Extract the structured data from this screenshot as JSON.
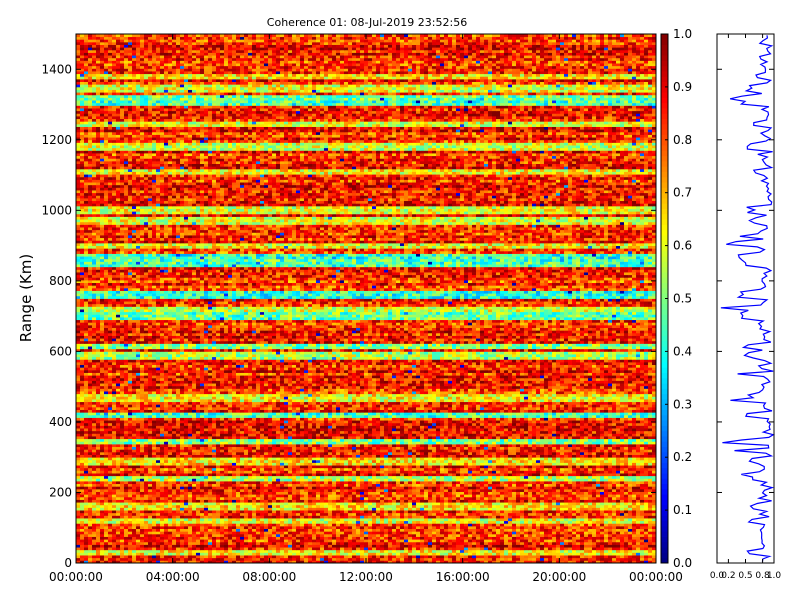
{
  "chart_data": [
    {
      "type": "heatmap",
      "title": "Coherence 01: 08-Jul-2019 23:52:56",
      "xlabel": "",
      "ylabel": "Range (Km)",
      "x_tick_labels": [
        "00:00:00",
        "04:00:00",
        "08:00:00",
        "12:00:00",
        "16:00:00",
        "20:00:00",
        "00:00:00"
      ],
      "x_range_hours": [
        0,
        24
      ],
      "y_ticks": [
        0,
        200,
        400,
        600,
        800,
        1000,
        1200,
        1400
      ],
      "ylim": [
        0,
        1500
      ],
      "range_gate_km": 7.5,
      "color_scale": {
        "colormap": "jet",
        "range": [
          0,
          1
        ],
        "ticks": [
          0.0,
          0.1,
          0.2,
          0.3,
          0.4,
          0.5,
          0.6,
          0.7,
          0.8,
          0.9,
          1.0
        ],
        "tick_labels": [
          "0.0",
          "0.1",
          "0.2",
          "0.3",
          "0.4",
          "0.5",
          "0.6",
          "0.7",
          "0.8",
          "0.9",
          "1.0"
        ]
      },
      "low_coherence_bands_km": [
        {
          "range_km": 30,
          "coherence": 0.62
        },
        {
          "range_km": 120,
          "coherence": 0.6
        },
        {
          "range_km": 160,
          "coherence": 0.65
        },
        {
          "range_km": 240,
          "coherence": 0.55
        },
        {
          "range_km": 290,
          "coherence": 0.65
        },
        {
          "range_km": 345,
          "coherence": 0.5
        },
        {
          "range_km": 420,
          "coherence": 0.45
        },
        {
          "range_km": 470,
          "coherence": 0.62
        },
        {
          "range_km": 590,
          "coherence": 0.55
        },
        {
          "range_km": 615,
          "coherence": 0.5
        },
        {
          "range_km": 700,
          "coherence": 0.48
        },
        {
          "range_km": 720,
          "coherence": 0.58
        },
        {
          "range_km": 760,
          "coherence": 0.42
        },
        {
          "range_km": 850,
          "coherence": 0.45
        },
        {
          "range_km": 870,
          "coherence": 0.42
        },
        {
          "range_km": 900,
          "coherence": 0.62
        },
        {
          "range_km": 970,
          "coherence": 0.6
        },
        {
          "range_km": 1000,
          "coherence": 0.6
        },
        {
          "range_km": 1110,
          "coherence": 0.62
        },
        {
          "range_km": 1180,
          "coherence": 0.58
        },
        {
          "range_km": 1245,
          "coherence": 0.6
        },
        {
          "range_km": 1305,
          "coherence": 0.45
        },
        {
          "range_km": 1320,
          "coherence": 0.48
        },
        {
          "range_km": 1345,
          "coherence": 0.6
        },
        {
          "range_km": 1380,
          "coherence": 0.65
        }
      ],
      "background_coherence": 0.85
    },
    {
      "type": "line",
      "description": "mean coherence vs range profile",
      "x_tick_labels": [
        "0.0",
        "0.2",
        "0.5",
        "0.8",
        "1.0"
      ],
      "xlim": [
        0,
        1
      ],
      "ylim": [
        0,
        1500
      ],
      "series_color": "#0000ff"
    }
  ],
  "colors": {
    "profile_line": "#0000ff",
    "axes": "#000000",
    "background": "#ffffff"
  }
}
